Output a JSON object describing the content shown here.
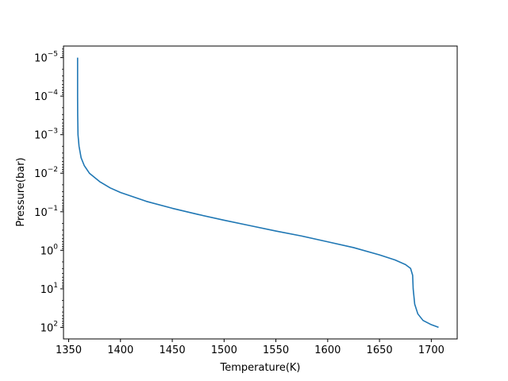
{
  "chart_data": {
    "type": "line",
    "title": "",
    "xlabel": "Temperature(K)",
    "ylabel": "Pressure(bar)",
    "xlim": [
      1345,
      1725
    ],
    "ylim_log10": [
      -5.3,
      2.3
    ],
    "y_scale": "log",
    "y_inverted": true,
    "grid": false,
    "x_ticks": [
      1350,
      1400,
      1450,
      1500,
      1550,
      1600,
      1650,
      1700
    ],
    "x_tick_labels": [
      "1350",
      "1400",
      "1450",
      "1500",
      "1550",
      "1600",
      "1650",
      "1700"
    ],
    "y_tick_exponents": [
      -5,
      -4,
      -3,
      -2,
      -1,
      0,
      1,
      2
    ],
    "series": [
      {
        "color": "#1f77b4",
        "points": [
          [
            1358.6,
            -5.0
          ],
          [
            1358.6,
            -4.0
          ],
          [
            1358.7,
            -3.5
          ],
          [
            1359.0,
            -3.0
          ],
          [
            1360.0,
            -2.7
          ],
          [
            1362.0,
            -2.4
          ],
          [
            1365.0,
            -2.2
          ],
          [
            1370.0,
            -2.0
          ],
          [
            1380.0,
            -1.78
          ],
          [
            1390.0,
            -1.62
          ],
          [
            1400.0,
            -1.5
          ],
          [
            1425.0,
            -1.27
          ],
          [
            1450.0,
            -1.09
          ],
          [
            1475.0,
            -0.93
          ],
          [
            1500.0,
            -0.78
          ],
          [
            1525.0,
            -0.64
          ],
          [
            1550.0,
            -0.5
          ],
          [
            1575.0,
            -0.37
          ],
          [
            1600.0,
            -0.22
          ],
          [
            1625.0,
            -0.07
          ],
          [
            1650.0,
            0.12
          ],
          [
            1665.0,
            0.25
          ],
          [
            1675.0,
            0.37
          ],
          [
            1680.0,
            0.47
          ],
          [
            1682.0,
            0.65
          ],
          [
            1682.5,
            1.0
          ],
          [
            1684.0,
            1.4
          ],
          [
            1687.0,
            1.65
          ],
          [
            1692.0,
            1.82
          ],
          [
            1700.0,
            1.93
          ],
          [
            1707.0,
            2.0
          ]
        ]
      }
    ]
  }
}
